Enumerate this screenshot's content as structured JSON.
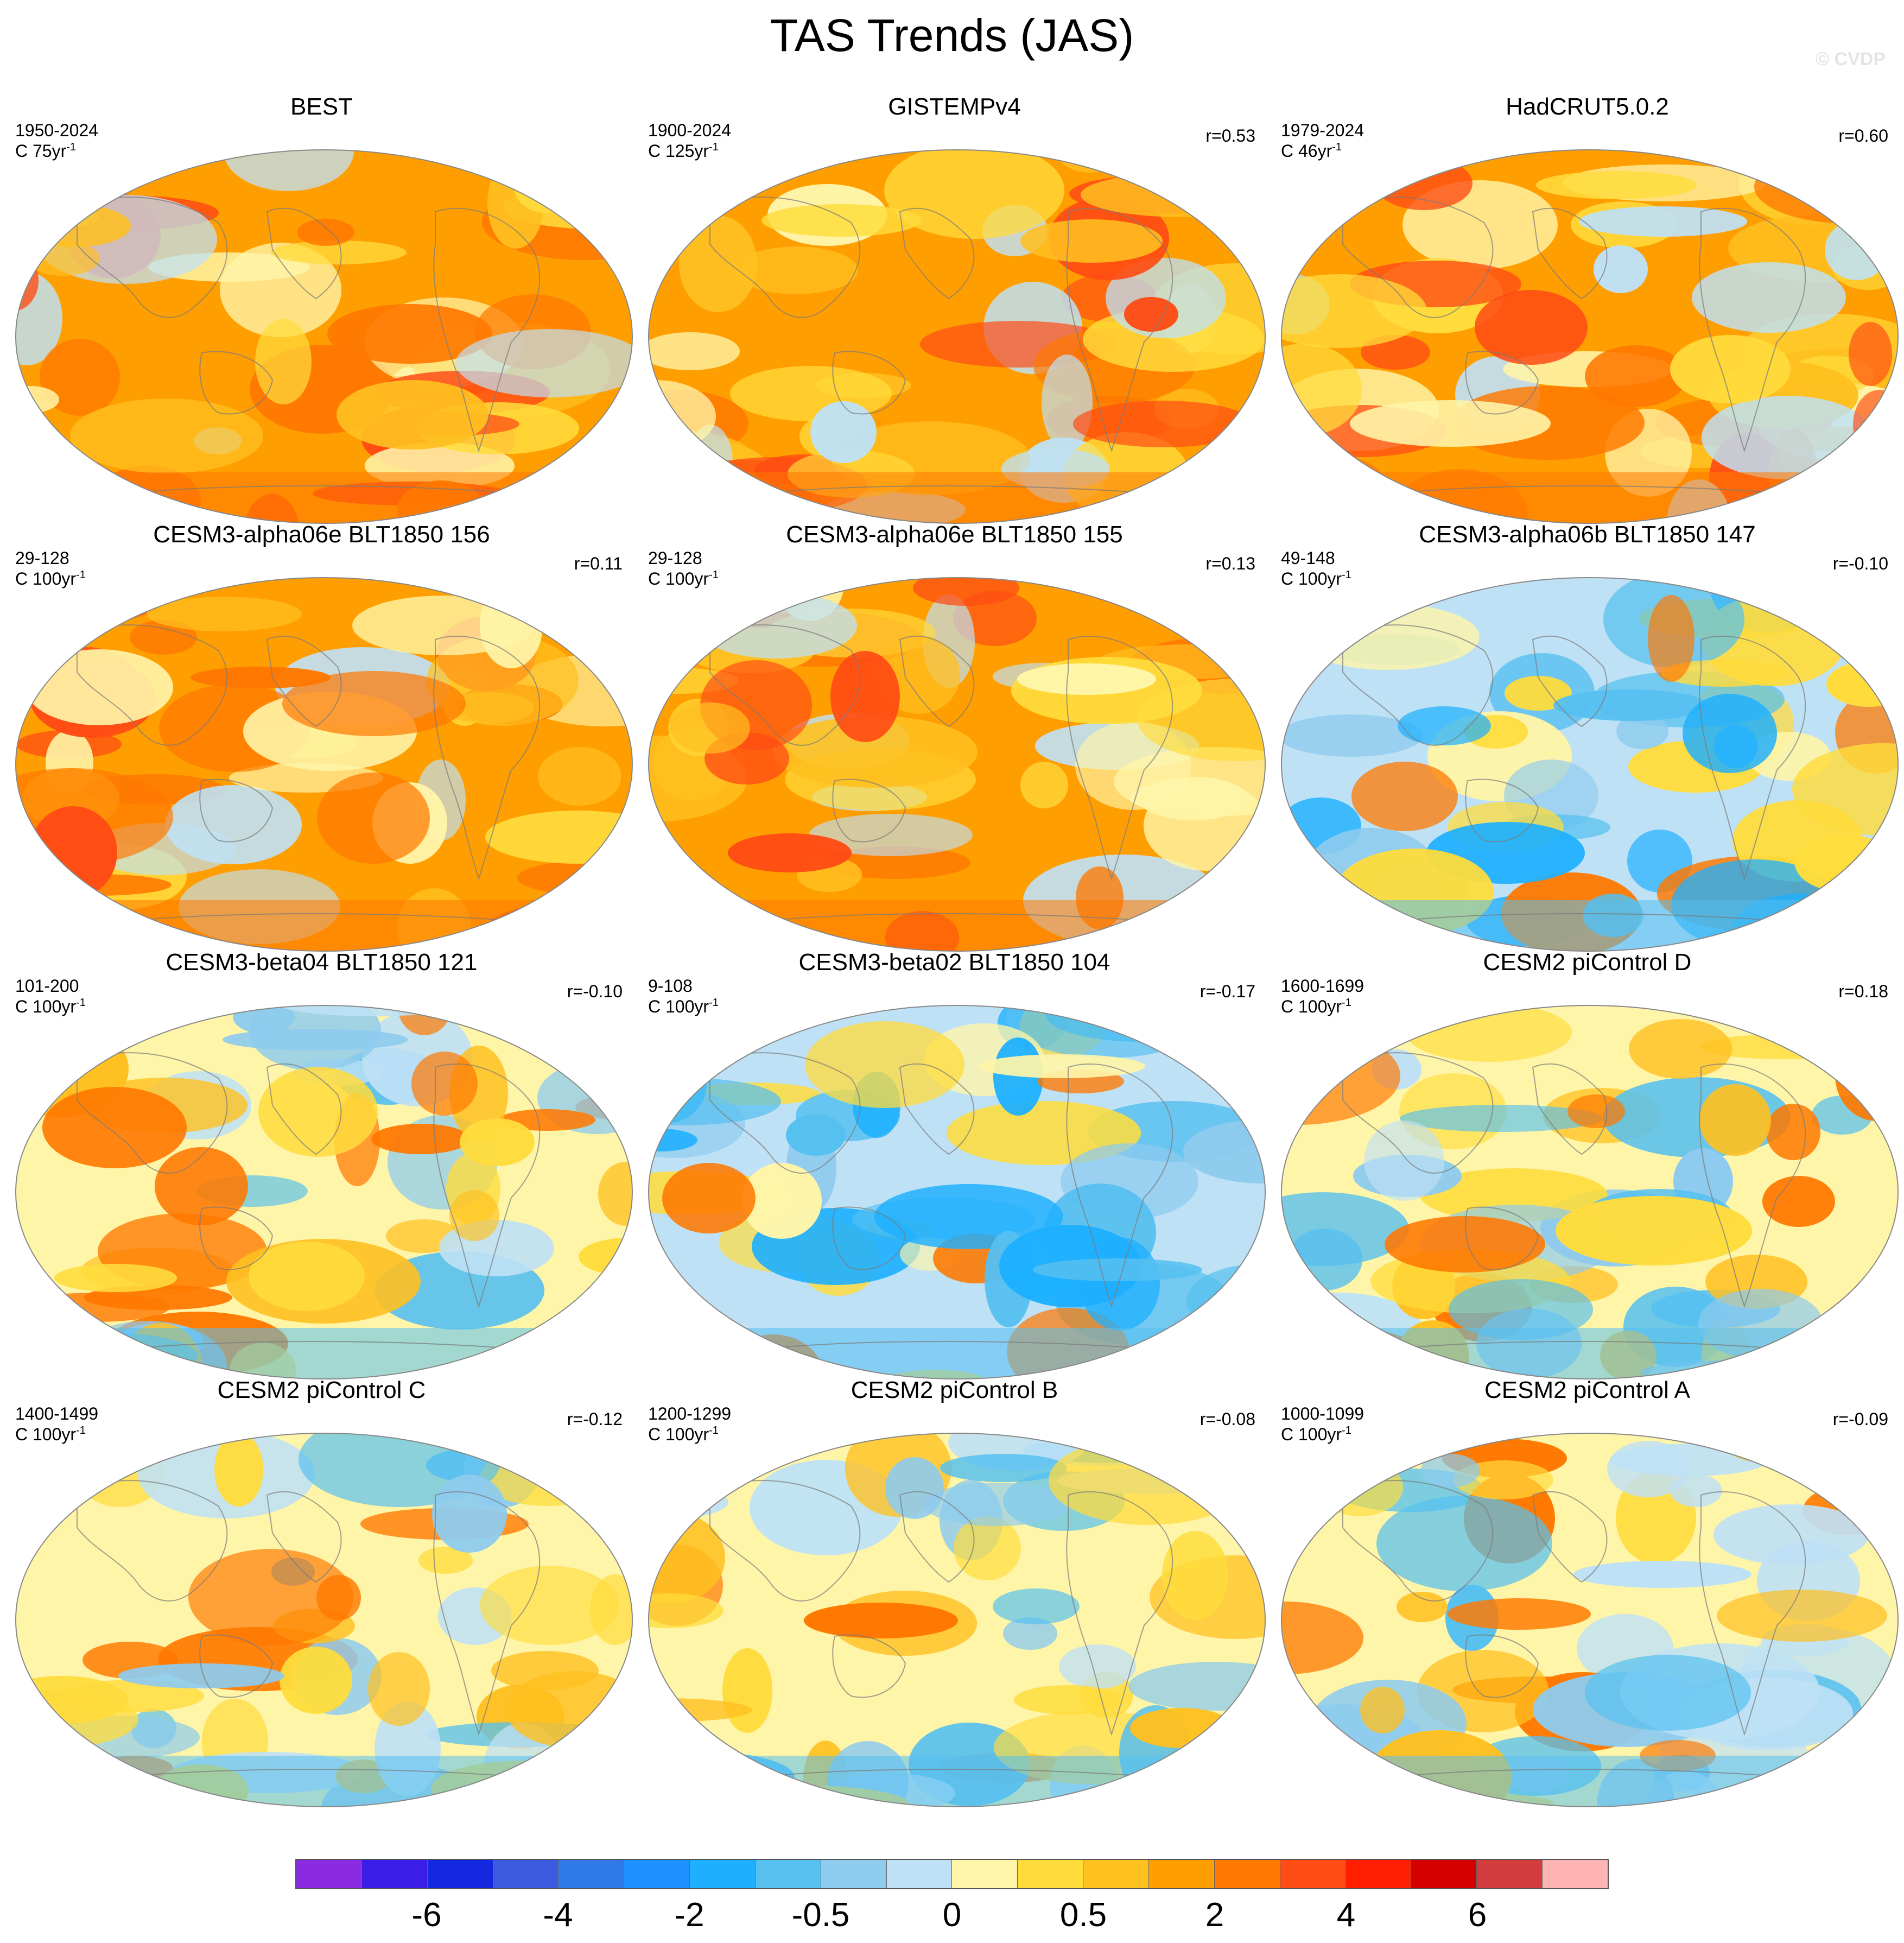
{
  "title": "TAS Trends (JAS)",
  "watermark": "© CVDP",
  "panels": [
    {
      "title": "BEST",
      "years": "1950-2024",
      "units_prefix": "C 75yr",
      "r": "",
      "style": "warm",
      "intensity": 0.72
    },
    {
      "title": "GISTEMPv4",
      "years": "1900-2024",
      "units_prefix": "C 125yr",
      "r": "r=0.53",
      "style": "warm",
      "intensity": 0.76
    },
    {
      "title": "HadCRUT5.0.2",
      "years": "1979-2024",
      "units_prefix": "C 46yr",
      "r": "r=0.60",
      "style": "warm",
      "intensity": 0.62
    },
    {
      "title": "CESM3-alpha06e BLT1850 156",
      "years": "29-128",
      "units_prefix": "C 100yr",
      "r": "r=0.11",
      "style": "warm",
      "intensity": 0.55
    },
    {
      "title": "CESM3-alpha06e BLT1850 155",
      "years": "29-128",
      "units_prefix": "C 100yr",
      "r": "r=0.13",
      "style": "warm",
      "intensity": 0.57
    },
    {
      "title": "CESM3-alpha06b BLT1850 147",
      "years": "49-148",
      "units_prefix": "C 100yr",
      "r": "r=-0.10",
      "style": "cool",
      "intensity": 0.4
    },
    {
      "title": "CESM3-beta04 BLT1850 121",
      "years": "101-200",
      "units_prefix": "C 100yr",
      "r": "r=-0.10",
      "style": "mixed",
      "intensity": 0.5
    },
    {
      "title": "CESM3-beta02 BLT1850 104",
      "years": "9-108",
      "units_prefix": "C 100yr",
      "r": "r=-0.17",
      "style": "cool",
      "intensity": 0.45
    },
    {
      "title": "CESM2 piControl D",
      "years": "1600-1699",
      "units_prefix": "C 100yr",
      "r": "r=0.18",
      "style": "mixed",
      "intensity": 0.48
    },
    {
      "title": "CESM2 piControl C",
      "years": "1400-1499",
      "units_prefix": "C 100yr",
      "r": "r=-0.12",
      "style": "mixed",
      "intensity": 0.47
    },
    {
      "title": "CESM2 piControl B",
      "years": "1200-1299",
      "units_prefix": "C 100yr",
      "r": "r=-0.08",
      "style": "mixed",
      "intensity": 0.46
    },
    {
      "title": "CESM2 piControl A",
      "years": "1000-1099",
      "units_prefix": "C 100yr",
      "r": "r=-0.09",
      "style": "mixed",
      "intensity": 0.44
    }
  ],
  "units_exponent": "-1",
  "colorbar": {
    "colors": [
      "#8a2be2",
      "#3a1ee8",
      "#1428e0",
      "#3c5ae0",
      "#2f79e8",
      "#1e90ff",
      "#1eb0ff",
      "#56c0f0",
      "#8ecbee",
      "#bfe1f5",
      "#fff5a8",
      "#ffdc3c",
      "#ffc020",
      "#ff9e00",
      "#ff7800",
      "#ff4c14",
      "#ff1e00",
      "#d40000",
      "#d23c3c",
      "#ffb4b4"
    ],
    "labels": [
      "-6",
      "-4",
      "-2",
      "-0.5",
      "0",
      "0.5",
      "2",
      "4",
      "6"
    ]
  }
}
